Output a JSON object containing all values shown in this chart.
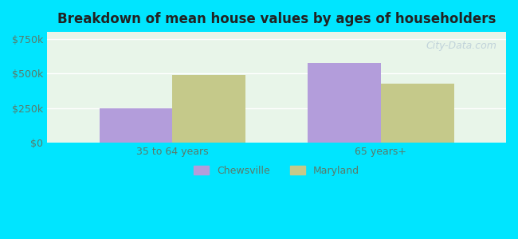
{
  "title": "Breakdown of mean house values by ages of householders",
  "categories": [
    "35 to 64 years",
    "65 years+"
  ],
  "chewsville_values": [
    250000,
    575000
  ],
  "maryland_values": [
    490000,
    430000
  ],
  "chewsville_color": "#b39ddb",
  "maryland_color": "#c5c98a",
  "background_color": "#00e5ff",
  "plot_bg_color": "#e8f5e9",
  "yticks": [
    0,
    250000,
    500000,
    750000
  ],
  "ytick_labels": [
    "$0",
    "$250k",
    "$500k",
    "$750k"
  ],
  "ylim": [
    0,
    800000
  ],
  "bar_width": 0.35,
  "legend_labels": [
    "Chewsville",
    "Maryland"
  ],
  "watermark": "City-Data.com"
}
